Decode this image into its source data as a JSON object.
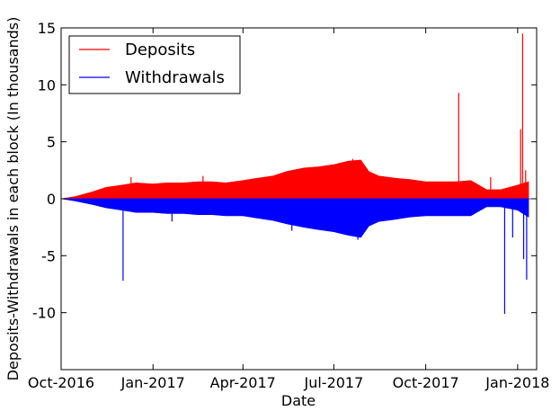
{
  "chart_data": {
    "type": "area",
    "title": "",
    "xlabel": "Date",
    "ylabel": "Deposits-Withdrawals in each block (In thousands)",
    "xlim": [
      "2016-10-01",
      "2018-01-20"
    ],
    "ylim": [
      -15,
      15
    ],
    "x_ticks": [
      "Oct-2016",
      "Jan-2017",
      "Apr-2017",
      "Jul-2017",
      "Oct-2017",
      "Jan-2018"
    ],
    "y_ticks": [
      "15",
      "10",
      "5",
      "0",
      "-5",
      "-10"
    ],
    "y_tick_values": [
      15,
      10,
      5,
      0,
      -5,
      -10
    ],
    "grid": false,
    "legend": "top-left",
    "series": [
      {
        "name": "Deposits",
        "color": "#ff0000",
        "envelope": [
          [
            "2016-10-01",
            0.0
          ],
          [
            "2016-10-15",
            0.2
          ],
          [
            "2016-11-01",
            0.6
          ],
          [
            "2016-11-15",
            1.0
          ],
          [
            "2016-12-01",
            1.2
          ],
          [
            "2016-12-15",
            1.4
          ],
          [
            "2017-01-01",
            1.3
          ],
          [
            "2017-01-15",
            1.4
          ],
          [
            "2017-02-01",
            1.4
          ],
          [
            "2017-02-15",
            1.5
          ],
          [
            "2017-03-01",
            1.5
          ],
          [
            "2017-03-15",
            1.4
          ],
          [
            "2017-04-01",
            1.6
          ],
          [
            "2017-04-15",
            1.8
          ],
          [
            "2017-05-01",
            2.0
          ],
          [
            "2017-05-15",
            2.4
          ],
          [
            "2017-06-01",
            2.7
          ],
          [
            "2017-06-15",
            2.8
          ],
          [
            "2017-07-01",
            3.0
          ],
          [
            "2017-07-15",
            3.3
          ],
          [
            "2017-07-28",
            3.4
          ],
          [
            "2017-08-05",
            2.4
          ],
          [
            "2017-08-15",
            2.0
          ],
          [
            "2017-09-01",
            1.8
          ],
          [
            "2017-09-15",
            1.7
          ],
          [
            "2017-10-01",
            1.5
          ],
          [
            "2017-10-15",
            1.5
          ],
          [
            "2017-11-01",
            1.5
          ],
          [
            "2017-11-15",
            1.6
          ],
          [
            "2017-12-01",
            0.8
          ],
          [
            "2017-12-15",
            0.8
          ],
          [
            "2018-01-01",
            1.2
          ],
          [
            "2018-01-12",
            1.5
          ]
        ],
        "spikes": [
          [
            "2016-12-10",
            1.9
          ],
          [
            "2017-02-20",
            2.0
          ],
          [
            "2017-07-20",
            3.5
          ],
          [
            "2017-11-03",
            9.3
          ],
          [
            "2017-12-05",
            1.9
          ],
          [
            "2018-01-04",
            6.1
          ],
          [
            "2018-01-06",
            14.5
          ],
          [
            "2018-01-09",
            2.5
          ]
        ]
      },
      {
        "name": "Withdrawals",
        "color": "#0000ff",
        "envelope": [
          [
            "2016-10-01",
            0.0
          ],
          [
            "2016-10-15",
            -0.2
          ],
          [
            "2016-11-01",
            -0.5
          ],
          [
            "2016-11-15",
            -0.8
          ],
          [
            "2016-12-01",
            -1.0
          ],
          [
            "2016-12-15",
            -1.2
          ],
          [
            "2017-01-01",
            -1.2
          ],
          [
            "2017-01-15",
            -1.3
          ],
          [
            "2017-02-01",
            -1.3
          ],
          [
            "2017-02-15",
            -1.4
          ],
          [
            "2017-03-01",
            -1.4
          ],
          [
            "2017-03-15",
            -1.5
          ],
          [
            "2017-04-01",
            -1.5
          ],
          [
            "2017-04-15",
            -1.7
          ],
          [
            "2017-05-01",
            -1.9
          ],
          [
            "2017-05-15",
            -2.2
          ],
          [
            "2017-06-01",
            -2.5
          ],
          [
            "2017-06-15",
            -2.7
          ],
          [
            "2017-07-01",
            -2.9
          ],
          [
            "2017-07-15",
            -3.2
          ],
          [
            "2017-07-28",
            -3.4
          ],
          [
            "2017-08-05",
            -2.4
          ],
          [
            "2017-08-15",
            -2.0
          ],
          [
            "2017-09-01",
            -1.8
          ],
          [
            "2017-09-15",
            -1.6
          ],
          [
            "2017-10-01",
            -1.5
          ],
          [
            "2017-10-15",
            -1.5
          ],
          [
            "2017-11-01",
            -1.5
          ],
          [
            "2017-11-15",
            -1.5
          ],
          [
            "2017-12-01",
            -0.7
          ],
          [
            "2017-12-15",
            -0.7
          ],
          [
            "2018-01-01",
            -1.0
          ],
          [
            "2018-01-12",
            -1.6
          ]
        ],
        "spikes": [
          [
            "2016-12-02",
            -7.2
          ],
          [
            "2017-01-20",
            -2.0
          ],
          [
            "2017-05-20",
            -2.8
          ],
          [
            "2017-07-25",
            -3.6
          ],
          [
            "2017-12-19",
            -10.1
          ],
          [
            "2017-12-27",
            -3.4
          ],
          [
            "2018-01-07",
            -5.3
          ],
          [
            "2018-01-10",
            -7.1
          ]
        ]
      }
    ]
  }
}
